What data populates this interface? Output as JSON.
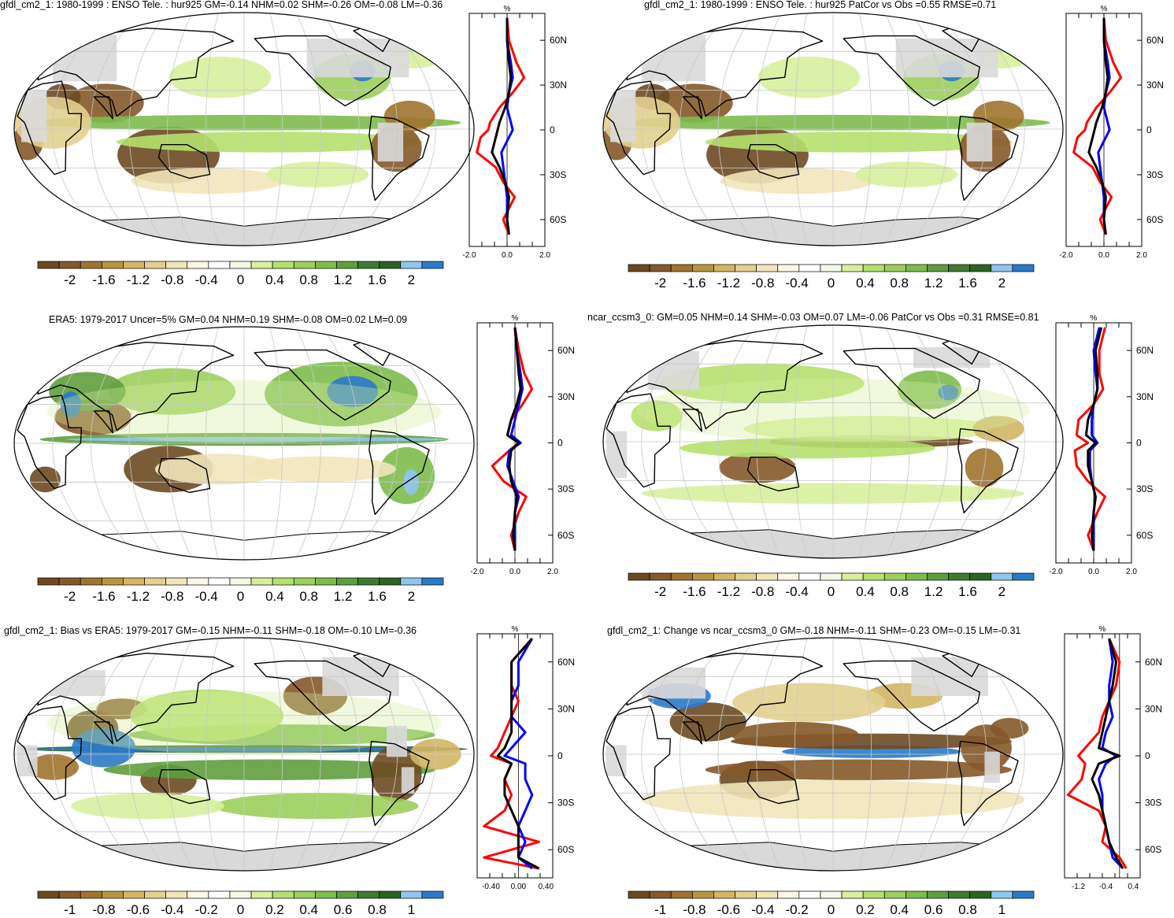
{
  "colors": {
    "scale": [
      "#6b4a22",
      "#85592a",
      "#a0732f",
      "#b89640",
      "#d2b664",
      "#e3d08f",
      "#f1e6ba",
      "#fbf7e6",
      "#ffffff",
      "#f2f9e6",
      "#d8ef9e",
      "#b6e06e",
      "#9ccf5c",
      "#7dbd4c",
      "#5f9e3e",
      "#3f7a30",
      "#2c6322",
      "#8fc6ef",
      "#2a7ac8"
    ],
    "ocean_white": "#ffffff",
    "masked_land": "#d9d9d9",
    "obs_line": "#ff0000",
    "model_line": "#0000ff",
    "ref_line": "#000000"
  },
  "panels": [
    {
      "id": "a",
      "title": "gfdl_cm2_1: 1980-1999 : ENSO Tele. : hur925 GM=-0.14 NHM=0.02 SHM=-0.26 OM=-0.08 LM=-0.36",
      "colorbar_labels": [
        "-2",
        "-1.6",
        "-1.2",
        "-0.8",
        "-0.4",
        "0",
        "0.4",
        "0.8",
        "1.2",
        "1.6",
        "2"
      ],
      "zonal_xticks": [
        "-2.0",
        "0.0",
        "2.0"
      ],
      "zonal_yticks": [
        "60N",
        "30N",
        "0",
        "30S",
        "60S"
      ],
      "zonal_unit": "%"
    },
    {
      "id": "b",
      "title": "gfdl_cm2_1: 1980-1999 : ENSO Tele. : hur925 PatCor vs Obs =0.55 RMSE=0.71",
      "colorbar_labels": [
        "-2",
        "-1.6",
        "-1.2",
        "-0.8",
        "-0.4",
        "0",
        "0.4",
        "0.8",
        "1.2",
        "1.6",
        "2"
      ],
      "zonal_xticks": [
        "-2.0",
        "0.0",
        "2.0"
      ],
      "zonal_yticks": [
        "60N",
        "30N",
        "0",
        "30S",
        "60S"
      ],
      "zonal_unit": "%"
    },
    {
      "id": "c",
      "title": "ERA5: 1979-2017 Uncer=5% GM=0.04 NHM=0.19 SHM=-0.08 OM=0.02 LM=0.09",
      "colorbar_labels": [
        "-2",
        "-1.6",
        "-1.2",
        "-0.8",
        "-0.4",
        "0",
        "0.4",
        "0.8",
        "1.2",
        "1.6",
        "2"
      ],
      "zonal_xticks": [
        "-2.0",
        "0.0",
        "2.0"
      ],
      "zonal_yticks": [
        "60N",
        "30N",
        "0",
        "30S",
        "60S"
      ],
      "zonal_unit": "%"
    },
    {
      "id": "d",
      "title": "ncar_ccsm3_0: GM=0.05 NHM=0.14 SHM=-0.03 OM=0.07 LM=-0.06 PatCor vs Obs =0.31 RMSE=0.81",
      "colorbar_labels": [
        "-2",
        "-1.6",
        "-1.2",
        "-0.8",
        "-0.4",
        "0",
        "0.4",
        "0.8",
        "1.2",
        "1.6",
        "2"
      ],
      "zonal_xticks": [
        "-2.0",
        "0.0",
        "2.0"
      ],
      "zonal_yticks": [
        "60N",
        "30N",
        "0",
        "30S",
        "60S"
      ],
      "zonal_unit": "%"
    },
    {
      "id": "e",
      "title": "gfdl_cm2_1: Bias vs ERA5: 1979-2017 GM=-0.15 NHM=-0.11 SHM=-0.18 OM=-0.10 LM=-0.36",
      "colorbar_labels": [
        "-1",
        "-0.8",
        "-0.6",
        "-0.4",
        "-0.2",
        "0",
        "0.2",
        "0.4",
        "0.6",
        "0.8",
        "1"
      ],
      "zonal_xticks": [
        "-0.40",
        "0.00",
        "0.40"
      ],
      "zonal_yticks": [
        "60N",
        "30N",
        "0",
        "30S",
        "60S"
      ],
      "zonal_unit": "%"
    },
    {
      "id": "f",
      "title": "gfdl_cm2_1: Change vs ncar_ccsm3_0 GM=-0.18 NHM=-0.11 SHM=-0.23 OM=-0.15 LM=-0.31",
      "colorbar_labels": [
        "-1",
        "-0.8",
        "-0.6",
        "-0.4",
        "-0.2",
        "0",
        "0.2",
        "0.4",
        "0.6",
        "0.8",
        "1"
      ],
      "zonal_xticks": [
        "-1.2",
        "-0.4",
        "0.4"
      ],
      "zonal_yticks": [
        "60N",
        "30N",
        "0",
        "30S",
        "60S"
      ],
      "zonal_unit": "%"
    }
  ],
  "chart_data": [
    {
      "type": "heatmap",
      "title": "gfdl_cm2_1: 1980-1999 : ENSO Tele. : hur925 GM=-0.14 NHM=0.02 SHM=-0.26 OM=-0.08 LM=-0.36",
      "colorbar": [
        -2,
        -1.6,
        -1.2,
        -0.8,
        -0.4,
        0,
        0.4,
        0.8,
        1.2,
        1.6,
        2
      ],
      "zonal_mean": {
        "x_range": [
          -2.0,
          2.0
        ],
        "yticks": [
          "60N",
          "30N",
          "0",
          "30S",
          "60S"
        ],
        "lat": [
          75,
          60,
          45,
          35,
          25,
          15,
          5,
          0,
          -5,
          -15,
          -25,
          -35,
          -45,
          -60,
          -70
        ],
        "series": [
          {
            "color": "red",
            "values": [
              0.0,
              0.1,
              0.5,
              0.9,
              0.3,
              -0.4,
              -0.9,
              -1.0,
              -1.4,
              -1.6,
              -0.6,
              -0.2,
              0.4,
              -0.2,
              0.1
            ]
          },
          {
            "color": "blue",
            "values": [
              0.0,
              0.0,
              0.2,
              0.3,
              0.1,
              0.0,
              0.2,
              0.3,
              0.1,
              -0.3,
              -0.2,
              -0.1,
              0.0,
              0.0,
              0.1
            ]
          },
          {
            "color": "black",
            "values": [
              0.0,
              0.0,
              0.1,
              0.2,
              0.1,
              -0.1,
              -0.4,
              -0.5,
              -0.6,
              -0.8,
              -0.4,
              -0.1,
              0.1,
              0.0,
              0.1
            ]
          }
        ]
      }
    },
    {
      "type": "heatmap",
      "title": "gfdl_cm2_1: 1980-1999 : ENSO Tele. : hur925 PatCor vs Obs =0.55 RMSE=0.71",
      "colorbar": [
        -2,
        -1.6,
        -1.2,
        -0.8,
        -0.4,
        0,
        0.4,
        0.8,
        1.2,
        1.6,
        2
      ],
      "zonal_mean": {
        "x_range": [
          -2.0,
          2.0
        ],
        "yticks": [
          "60N",
          "30N",
          "0",
          "30S",
          "60S"
        ],
        "lat": [
          75,
          60,
          45,
          35,
          25,
          15,
          5,
          0,
          -5,
          -15,
          -25,
          -35,
          -45,
          -60,
          -70
        ],
        "series": [
          {
            "color": "red",
            "values": [
              0.0,
              0.1,
              0.5,
              0.9,
              0.3,
              -0.4,
              -0.9,
              -1.0,
              -1.4,
              -1.6,
              -0.6,
              -0.2,
              0.4,
              -0.2,
              0.1
            ]
          },
          {
            "color": "blue",
            "values": [
              0.0,
              0.0,
              0.2,
              0.3,
              0.1,
              0.0,
              0.2,
              0.3,
              0.1,
              -0.3,
              -0.2,
              -0.1,
              0.0,
              0.0,
              0.1
            ]
          },
          {
            "color": "black",
            "values": [
              0.0,
              0.0,
              0.1,
              0.2,
              0.1,
              -0.1,
              -0.4,
              -0.5,
              -0.6,
              -0.8,
              -0.4,
              -0.1,
              0.1,
              0.0,
              0.1
            ]
          }
        ]
      }
    },
    {
      "type": "heatmap",
      "title": "ERA5: 1979-2017 Uncer=5% GM=0.04 NHM=0.19 SHM=-0.08 OM=0.02 LM=0.09",
      "colorbar": [
        -2,
        -1.6,
        -1.2,
        -0.8,
        -0.4,
        0,
        0.4,
        0.8,
        1.2,
        1.6,
        2
      ],
      "zonal_mean": {
        "x_range": [
          -2.0,
          2.0
        ],
        "yticks": [
          "60N",
          "30N",
          "0",
          "30S",
          "60S"
        ],
        "lat": [
          75,
          60,
          45,
          35,
          25,
          15,
          5,
          0,
          -5,
          -15,
          -25,
          -35,
          -45,
          -60,
          -70
        ],
        "series": [
          {
            "color": "red",
            "values": [
              0.0,
              0.2,
              0.5,
              0.9,
              0.4,
              -0.2,
              -0.4,
              0.2,
              -0.3,
              -1.2,
              -0.6,
              0.6,
              0.2,
              -0.2,
              0.0
            ]
          },
          {
            "color": "blue",
            "values": [
              0.0,
              0.1,
              0.3,
              0.4,
              0.2,
              0.0,
              -0.2,
              0.3,
              -0.3,
              -0.4,
              -0.1,
              0.2,
              0.0,
              0.0,
              0.0
            ]
          },
          {
            "color": "black",
            "values": [
              0.0,
              0.1,
              0.2,
              0.3,
              0.1,
              -0.2,
              -0.4,
              0.2,
              -0.2,
              -0.3,
              -0.2,
              0.1,
              0.0,
              -0.1,
              0.0
            ]
          }
        ]
      }
    },
    {
      "type": "heatmap",
      "title": "ncar_ccsm3_0: GM=0.05 NHM=0.14 SHM=-0.03 OM=0.07 LM=-0.06 PatCor vs Obs =0.31 RMSE=0.81",
      "colorbar": [
        -2,
        -1.6,
        -1.2,
        -0.8,
        -0.4,
        0,
        0.4,
        0.8,
        1.2,
        1.6,
        2
      ],
      "zonal_mean": {
        "x_range": [
          -2.0,
          2.0
        ],
        "yticks": [
          "60N",
          "30N",
          "0",
          "30S",
          "60S"
        ],
        "lat": [
          75,
          60,
          45,
          35,
          25,
          15,
          5,
          0,
          -5,
          -15,
          -25,
          -35,
          -45,
          -60,
          -70
        ],
        "series": [
          {
            "color": "red",
            "values": [
              0.6,
              0.3,
              0.3,
              0.5,
              0.0,
              -0.8,
              -0.9,
              -0.3,
              -1.0,
              -0.9,
              -0.3,
              0.6,
              0.2,
              -0.3,
              0.0
            ]
          },
          {
            "color": "blue",
            "values": [
              0.3,
              0.0,
              0.1,
              0.2,
              0.0,
              -0.1,
              -0.1,
              0.2,
              -0.2,
              -0.2,
              -0.1,
              0.1,
              0.0,
              0.0,
              0.0
            ]
          },
          {
            "color": "black",
            "values": [
              0.4,
              0.1,
              0.2,
              0.2,
              0.0,
              -0.3,
              -0.4,
              0.1,
              -0.3,
              -0.3,
              -0.1,
              0.1,
              0.0,
              -0.1,
              0.0
            ]
          }
        ]
      }
    },
    {
      "type": "heatmap",
      "title": "gfdl_cm2_1: Bias vs ERA5: 1979-2017 GM=-0.15 NHM=-0.11 SHM=-0.18 OM=-0.10 LM=-0.36",
      "colorbar": [
        -1,
        -0.8,
        -0.6,
        -0.4,
        -0.2,
        0,
        0.2,
        0.4,
        0.6,
        0.8,
        1
      ],
      "zonal_mean": {
        "x_range": [
          -0.6,
          0.5
        ],
        "yticks": [
          "60N",
          "30N",
          "0",
          "30S",
          "60S"
        ],
        "lat": [
          75,
          60,
          45,
          35,
          25,
          15,
          5,
          0,
          -5,
          -15,
          -25,
          -35,
          -45,
          -55,
          -65,
          -72
        ],
        "series": [
          {
            "color": "red",
            "values": [
              0.2,
              -0.1,
              -0.1,
              0.0,
              -0.1,
              -0.2,
              -0.3,
              -0.4,
              -0.1,
              -0.2,
              -0.1,
              -0.2,
              -0.5,
              0.3,
              -0.5,
              0.3
            ]
          },
          {
            "color": "blue",
            "values": [
              0.2,
              0.0,
              0.0,
              -0.1,
              -0.1,
              0.1,
              -0.1,
              -0.2,
              0.1,
              0.1,
              0.2,
              0.1,
              0.0,
              0.1,
              0.0,
              0.2
            ]
          },
          {
            "color": "black",
            "values": [
              0.2,
              -0.1,
              -0.1,
              -0.1,
              -0.1,
              -0.1,
              -0.2,
              -0.3,
              -0.1,
              -0.2,
              -0.2,
              -0.1,
              0.0,
              0.0,
              0.0,
              0.3
            ]
          }
        ]
      }
    },
    {
      "type": "heatmap",
      "title": "gfdl_cm2_1: Change vs ncar_ccsm3_0 GM=-0.18 NHM=-0.11 SHM=-0.23 OM=-0.15 LM=-0.31",
      "colorbar": [
        -1,
        -0.8,
        -0.6,
        -0.4,
        -0.2,
        0,
        0.2,
        0.4,
        0.6,
        0.8,
        1
      ],
      "zonal_mean": {
        "x_range": [
          -1.6,
          0.6
        ],
        "yticks": [
          "60N",
          "30N",
          "0",
          "30S",
          "60S"
        ],
        "lat": [
          75,
          60,
          45,
          35,
          25,
          15,
          5,
          0,
          -5,
          -15,
          -25,
          -35,
          -45,
          -55,
          -65,
          -72
        ],
        "series": [
          {
            "color": "red",
            "values": [
              -0.3,
              0.0,
              -0.1,
              -0.3,
              -0.5,
              -0.6,
              -1.0,
              -1.2,
              -1.0,
              -1.1,
              -1.5,
              -0.6,
              -0.4,
              -0.5,
              0.0,
              0.2
            ]
          },
          {
            "color": "blue",
            "values": [
              -0.3,
              -0.2,
              -0.3,
              -0.3,
              -0.2,
              -0.4,
              -0.5,
              -0.1,
              -0.4,
              -0.6,
              -0.5,
              -0.5,
              -0.4,
              -0.3,
              -0.2,
              0.1
            ]
          },
          {
            "color": "black",
            "values": [
              -0.3,
              -0.1,
              -0.2,
              -0.3,
              -0.4,
              -0.5,
              -0.6,
              0.0,
              -0.6,
              -0.8,
              -0.6,
              -0.5,
              -0.4,
              -0.3,
              -0.1,
              0.1
            ]
          }
        ]
      }
    }
  ]
}
